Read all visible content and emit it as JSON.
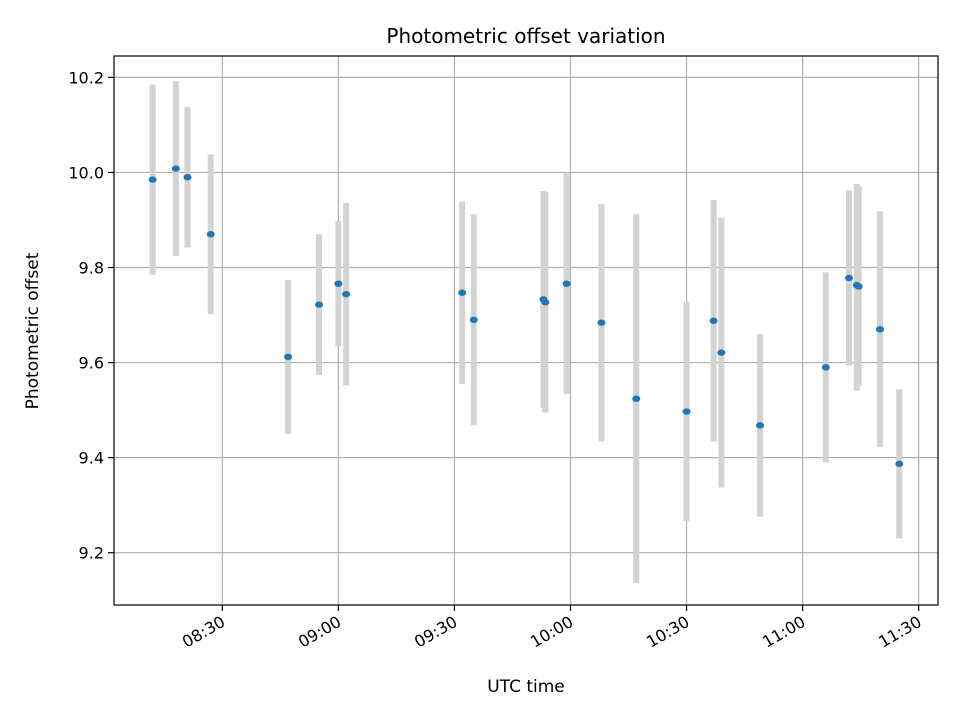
{
  "chart_data": {
    "type": "scatter",
    "title": "Photometric offset variation",
    "xlabel": "UTC time",
    "ylabel": "Photometric offset",
    "grid": true,
    "xlim": [
      "08:02",
      "11:35"
    ],
    "ylim": [
      9.09,
      10.245
    ],
    "x_ticks": [
      "08:30",
      "09:00",
      "09:30",
      "10:00",
      "10:30",
      "11:00",
      "11:30"
    ],
    "y_ticks": [
      9.2,
      9.4,
      9.6,
      9.8,
      10.0,
      10.2
    ],
    "y_tick_labels": [
      "9.2",
      "9.4",
      "9.6",
      "9.8",
      "10.0",
      "10.2"
    ],
    "point_color": "#1f77b4",
    "errorbar_color": "#d3d3d3",
    "points": [
      {
        "x": "08:12",
        "y": 9.985,
        "lo": 9.785,
        "hi": 10.185
      },
      {
        "x": "08:18",
        "y": 10.008,
        "lo": 9.824,
        "hi": 10.192
      },
      {
        "x": "08:21",
        "y": 9.99,
        "lo": 9.842,
        "hi": 10.138
      },
      {
        "x": "08:27",
        "y": 9.87,
        "lo": 9.702,
        "hi": 10.038
      },
      {
        "x": "08:47",
        "y": 9.612,
        "lo": 9.45,
        "hi": 9.774
      },
      {
        "x": "08:55",
        "y": 9.722,
        "lo": 9.574,
        "hi": 9.87
      },
      {
        "x": "09:00",
        "y": 9.766,
        "lo": 9.634,
        "hi": 9.898
      },
      {
        "x": "09:02",
        "y": 9.744,
        "lo": 9.552,
        "hi": 9.936
      },
      {
        "x": "09:32",
        "y": 9.747,
        "lo": 9.555,
        "hi": 9.939
      },
      {
        "x": "09:35",
        "y": 9.69,
        "lo": 9.468,
        "hi": 9.912
      },
      {
        "x": "09:53",
        "y": 9.733,
        "lo": 9.505,
        "hi": 9.961
      },
      {
        "x": "09:53.5",
        "y": 9.727,
        "lo": 9.495,
        "hi": 9.959
      },
      {
        "x": "09:59",
        "y": 9.766,
        "lo": 9.534,
        "hi": 9.998
      },
      {
        "x": "10:08",
        "y": 9.684,
        "lo": 9.434,
        "hi": 9.934
      },
      {
        "x": "10:17",
        "y": 9.524,
        "lo": 9.136,
        "hi": 9.912
      },
      {
        "x": "10:30",
        "y": 9.497,
        "lo": 9.267,
        "hi": 9.727
      },
      {
        "x": "10:37",
        "y": 9.688,
        "lo": 9.434,
        "hi": 9.942
      },
      {
        "x": "10:39",
        "y": 9.621,
        "lo": 9.337,
        "hi": 9.905
      },
      {
        "x": "10:49",
        "y": 9.468,
        "lo": 9.276,
        "hi": 9.66
      },
      {
        "x": "11:06",
        "y": 9.59,
        "lo": 9.39,
        "hi": 9.79
      },
      {
        "x": "11:12",
        "y": 9.778,
        "lo": 9.594,
        "hi": 9.962
      },
      {
        "x": "11:14",
        "y": 9.763,
        "lo": 9.541,
        "hi": 9.976
      },
      {
        "x": "11:14.5",
        "y": 9.76,
        "lo": 9.55,
        "hi": 9.97
      },
      {
        "x": "11:20",
        "y": 9.67,
        "lo": 9.422,
        "hi": 9.918
      },
      {
        "x": "11:25",
        "y": 9.387,
        "lo": 9.23,
        "hi": 9.544
      }
    ]
  }
}
